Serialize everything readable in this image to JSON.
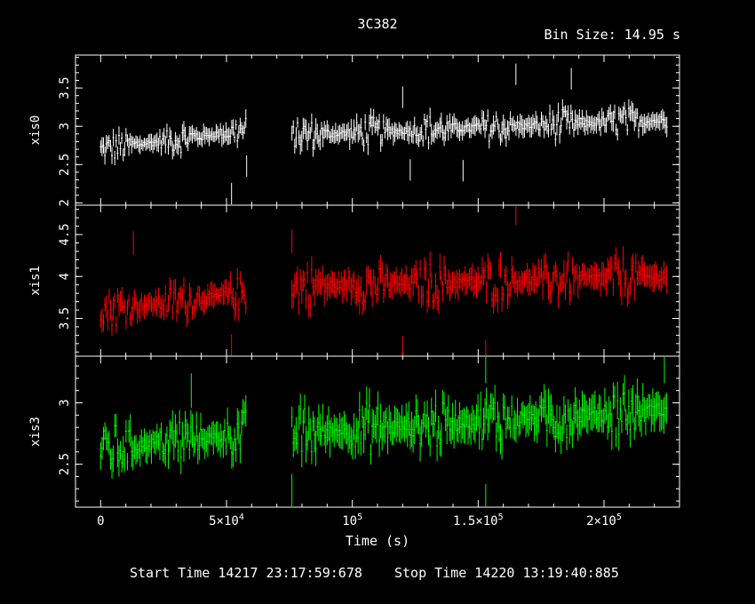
{
  "header": {
    "title": "3C382",
    "bin_size": "Bin Size: 14.95 s"
  },
  "footer": {
    "start_time": "Start Time 14217 23:17:59:678",
    "stop_time": "Stop Time 14220 13:19:40:885"
  },
  "chart_data": {
    "type": "scatter",
    "xlabel": "Time (s)",
    "xlim": [
      -10000,
      230000
    ],
    "x_ticks": [
      {
        "value": 0,
        "label": "0",
        "base": "0",
        "exp": ""
      },
      {
        "value": 50000,
        "label": "5×10^4",
        "base": "5×10",
        "exp": "4"
      },
      {
        "value": 100000,
        "label": "10^5",
        "base": "10",
        "exp": "5"
      },
      {
        "value": 150000,
        "label": "1.5×10^5",
        "base": "1.5×10",
        "exp": "5"
      },
      {
        "value": 200000,
        "label": "2×10^5",
        "base": "2×10",
        "exp": "5"
      }
    ],
    "gap": [
      58000,
      76000
    ],
    "panels": [
      {
        "ylabel": "xis0",
        "color": "#ffffff",
        "ylim": [
          1.97,
          3.93
        ],
        "yticks": [
          {
            "value": 2,
            "label": "2"
          },
          {
            "value": 2.5,
            "label": "2.5"
          },
          {
            "value": 3,
            "label": "3"
          },
          {
            "value": 3.5,
            "label": "3.5"
          }
        ],
        "segments": [
          {
            "x0": 0,
            "x1": 58000,
            "y0": 2.7,
            "y1": 2.95,
            "amp": 0.18
          },
          {
            "x0": 76000,
            "x1": 225000,
            "y0": 2.88,
            "y1": 3.08,
            "amp": 0.2
          }
        ],
        "outliers": [
          [
            52000,
            2.12
          ],
          [
            58000,
            2.48
          ],
          [
            120000,
            3.38
          ],
          [
            123000,
            2.43
          ],
          [
            144000,
            2.42
          ],
          [
            165000,
            3.68
          ],
          [
            187000,
            3.62
          ]
        ]
      },
      {
        "ylabel": "xis1",
        "color": "#ff0000",
        "ylim": [
          3.05,
          4.85
        ],
        "yticks": [
          {
            "value": 3.5,
            "label": "3.5"
          },
          {
            "value": 4,
            "label": "4"
          },
          {
            "value": 4.5,
            "label": "4.5"
          }
        ],
        "segments": [
          {
            "x0": 0,
            "x1": 58000,
            "y0": 3.6,
            "y1": 3.8,
            "amp": 0.22
          },
          {
            "x0": 76000,
            "x1": 225000,
            "y0": 3.88,
            "y1": 4.0,
            "amp": 0.25
          }
        ],
        "outliers": [
          [
            13000,
            4.4
          ],
          [
            52000,
            3.17
          ],
          [
            76000,
            4.42
          ],
          [
            120000,
            3.15
          ],
          [
            153000,
            3.1
          ],
          [
            165000,
            4.75
          ]
        ]
      },
      {
        "ylabel": "xis3",
        "color": "#00ff00",
        "ylim": [
          2.15,
          3.38
        ],
        "yticks": [
          {
            "value": 2.5,
            "label": "2.5"
          },
          {
            "value": 3,
            "label": "3"
          }
        ],
        "segments": [
          {
            "x0": 0,
            "x1": 58000,
            "y0": 2.62,
            "y1": 2.75,
            "amp": 0.2
          },
          {
            "x0": 76000,
            "x1": 225000,
            "y0": 2.75,
            "y1": 2.95,
            "amp": 0.22
          }
        ],
        "outliers": [
          [
            36000,
            3.1
          ],
          [
            76000,
            2.28
          ],
          [
            153000,
            2.2
          ],
          [
            153000,
            3.3
          ],
          [
            224000,
            3.3
          ]
        ]
      }
    ]
  }
}
